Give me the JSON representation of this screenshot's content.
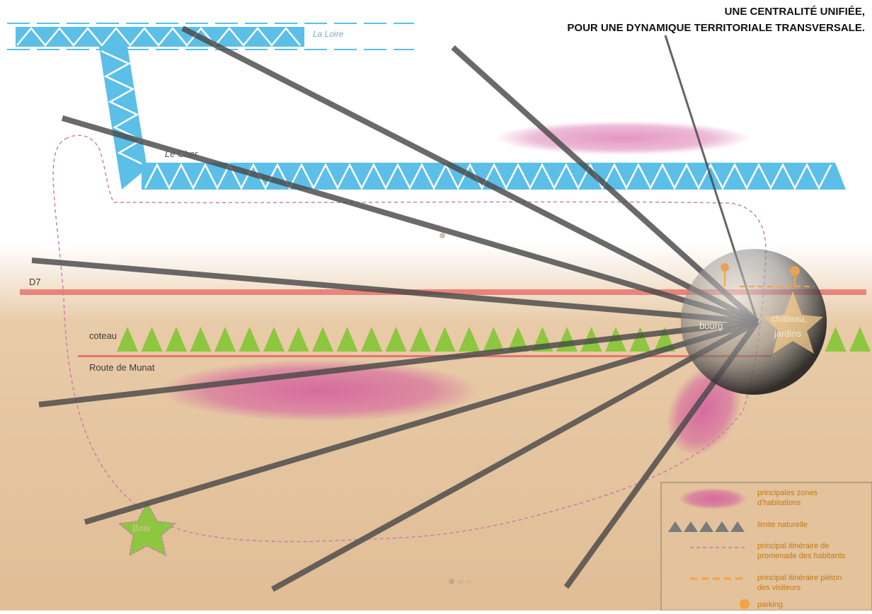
{
  "title": {
    "line1": "UNE CENTRALITÉ UNIFIÉE,",
    "line2": "POUR UNE DYNAMIQUE TERRITORIALE TRANSVERSALE."
  },
  "map_labels": {
    "loire": "La Loire",
    "cher": "Le Cher",
    "d7": "D7",
    "coteau": "coteau",
    "route_munat": "Route de Munat",
    "bourg": "bourg",
    "chateau_line1": "château,",
    "chateau_line2": "jardins",
    "bois": "Bois",
    "altitude_top": "",
    "altitude_bottom": "90 m"
  },
  "legend": {
    "items": [
      {
        "icon": "habitation-zone-swatch",
        "line1": "principales zones",
        "line2": "d'habitations"
      },
      {
        "icon": "natural-limit-triangles",
        "line1": "limite naturelle",
        "line2": ""
      },
      {
        "icon": "resident-path-dashed-pink",
        "line1": "principal itinéraire de",
        "line2": "promenade des habitants"
      },
      {
        "icon": "visitor-path-dashed-orange",
        "line1": "principal itinéraire piéton",
        "line2": "des visiteurs"
      },
      {
        "icon": "parking-dot",
        "line1": "parking",
        "line2": ""
      }
    ]
  },
  "colors": {
    "river": "#5bbfe8",
    "road": "#e8736f",
    "coteau": "#8dc63f",
    "land": "#e3c29c",
    "habitation": "#d45a9e",
    "rays": "#4a4a4a",
    "legend_text": "#c47a10",
    "path_resident": "#c97aa8",
    "path_visitor": "#f5a340"
  }
}
